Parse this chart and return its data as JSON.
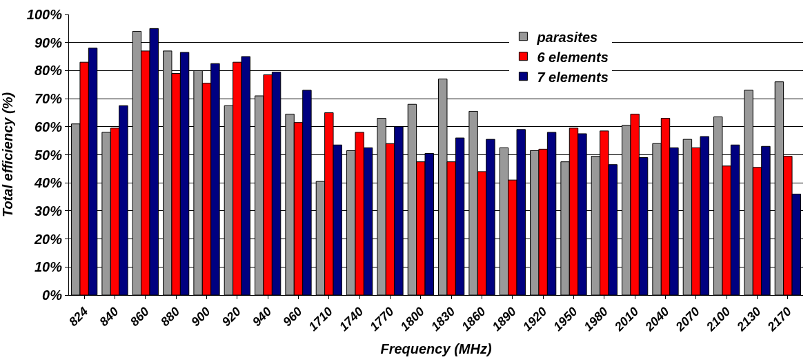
{
  "chart_data": {
    "type": "bar",
    "xlabel": "Frequency (MHz)",
    "ylabel": "Total efficiency (%)",
    "categories": [
      "824",
      "840",
      "860",
      "880",
      "900",
      "920",
      "940",
      "960",
      "1710",
      "1740",
      "1770",
      "1800",
      "1830",
      "1860",
      "1890",
      "1920",
      "1950",
      "1980",
      "2010",
      "2040",
      "2070",
      "2100",
      "2130",
      "2170"
    ],
    "series": [
      {
        "name": "parasites",
        "color": "#999999",
        "values": [
          61,
          58,
          94,
          87,
          80,
          67.5,
          71,
          64.5,
          40.5,
          51.5,
          63,
          68,
          77,
          65.5,
          52.5,
          51.5,
          47.5,
          49.5,
          60.5,
          54,
          55.5,
          63.5,
          73,
          76
        ]
      },
      {
        "name": "6 elements",
        "color": "#ff0000",
        "values": [
          83,
          59.5,
          87,
          79,
          75.5,
          83,
          78.5,
          61.5,
          65,
          58,
          54,
          47.5,
          47.5,
          44,
          41,
          52,
          59.5,
          58.5,
          64.5,
          63,
          52.5,
          46,
          45.5,
          49.5
        ]
      },
      {
        "name": "7 elements",
        "color": "#000080",
        "values": [
          88,
          67.5,
          95,
          86.5,
          82.5,
          85,
          79.5,
          73,
          53.5,
          52.5,
          60,
          50.5,
          56,
          55.5,
          59,
          58,
          57.5,
          46.5,
          49,
          52.5,
          56.5,
          53.5,
          53,
          36
        ]
      }
    ],
    "ylim": [
      0,
      100
    ],
    "yticks": [
      {
        "value": 0,
        "label": "0%"
      },
      {
        "value": 10,
        "label": "10%"
      },
      {
        "value": 20,
        "label": "20%"
      },
      {
        "value": 30,
        "label": "30%"
      },
      {
        "value": 40,
        "label": "40%"
      },
      {
        "value": 50,
        "label": "50%"
      },
      {
        "value": 60,
        "label": "60%"
      },
      {
        "value": 70,
        "label": "70%"
      },
      {
        "value": 80,
        "label": "80%"
      },
      {
        "value": 90,
        "label": "90%"
      },
      {
        "value": 100,
        "label": "100%"
      }
    ],
    "grid": "y",
    "legend": "top right"
  }
}
